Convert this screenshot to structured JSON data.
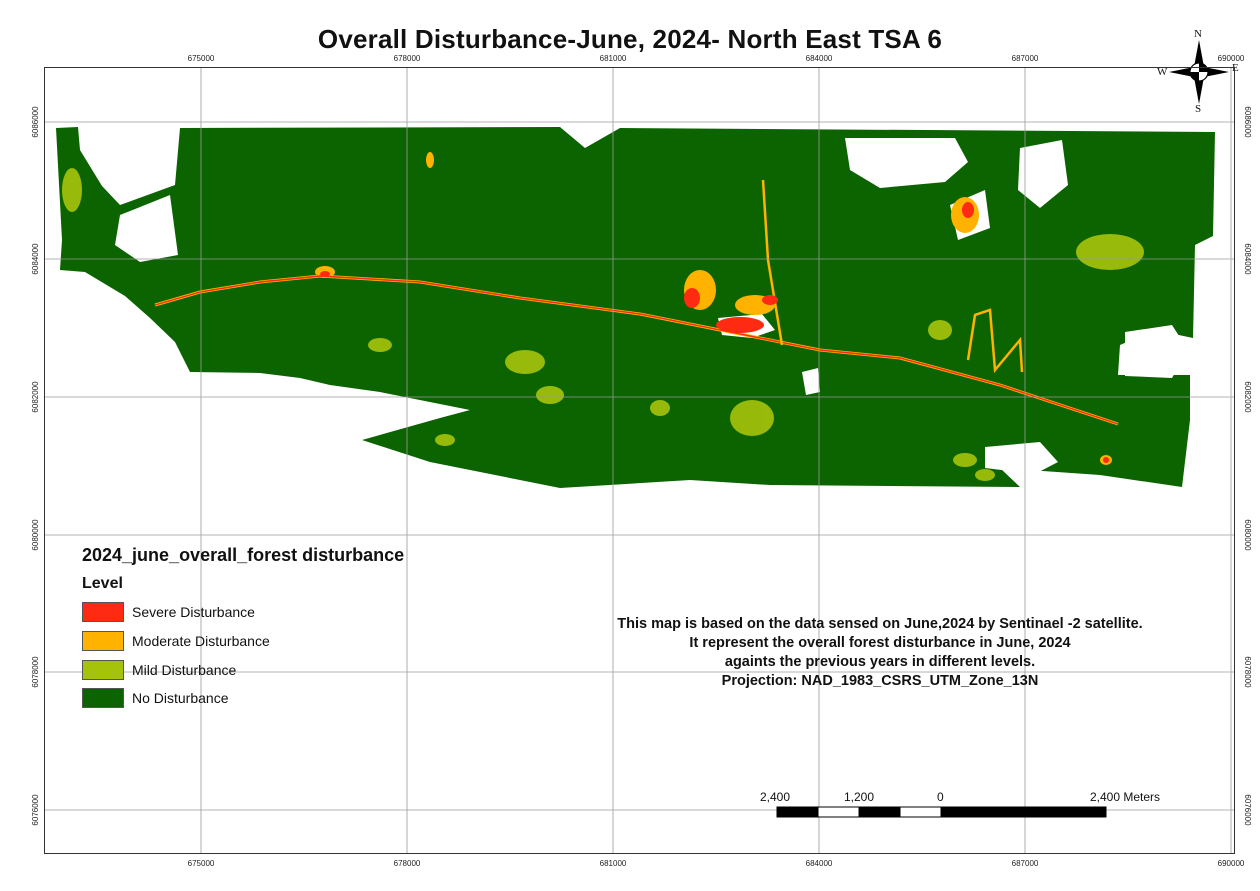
{
  "map": {
    "title": "Overall Disturbance-June, 2024- North East TSA 6",
    "x_ticks": [
      "675000",
      "678000",
      "681000",
      "684000",
      "687000",
      "690000"
    ],
    "y_ticks": [
      "6086000",
      "6084000",
      "6082000",
      "6080000",
      "6078000",
      "6076000"
    ],
    "legend": {
      "title": "2024_june_overall_forest disturbance",
      "level_label": "Level",
      "items": [
        {
          "label": "Severe Disturbance",
          "color": "#ff2a12"
        },
        {
          "label": "Moderate Disturbance",
          "color": "#ffb300"
        },
        {
          "label": "Mild Disturbance",
          "color": "#a6c30c"
        },
        {
          "label": "No Disturbance",
          "color": "#0b6400"
        }
      ]
    },
    "note": [
      "This map is based on the data sensed on June,2024 by Sentinael -2 satellite.",
      "It represent the overall forest disturbance in June, 2024",
      "againts the previous years in different levels.",
      "Projection: NAD_1983_CSRS_UTM_Zone_13N"
    ],
    "scale_bar": {
      "labels": [
        "2,400",
        "1,200",
        "0",
        "2,400 Meters"
      ]
    },
    "compass": {
      "n": "N",
      "s": "S",
      "e": "E",
      "w": "W"
    }
  }
}
